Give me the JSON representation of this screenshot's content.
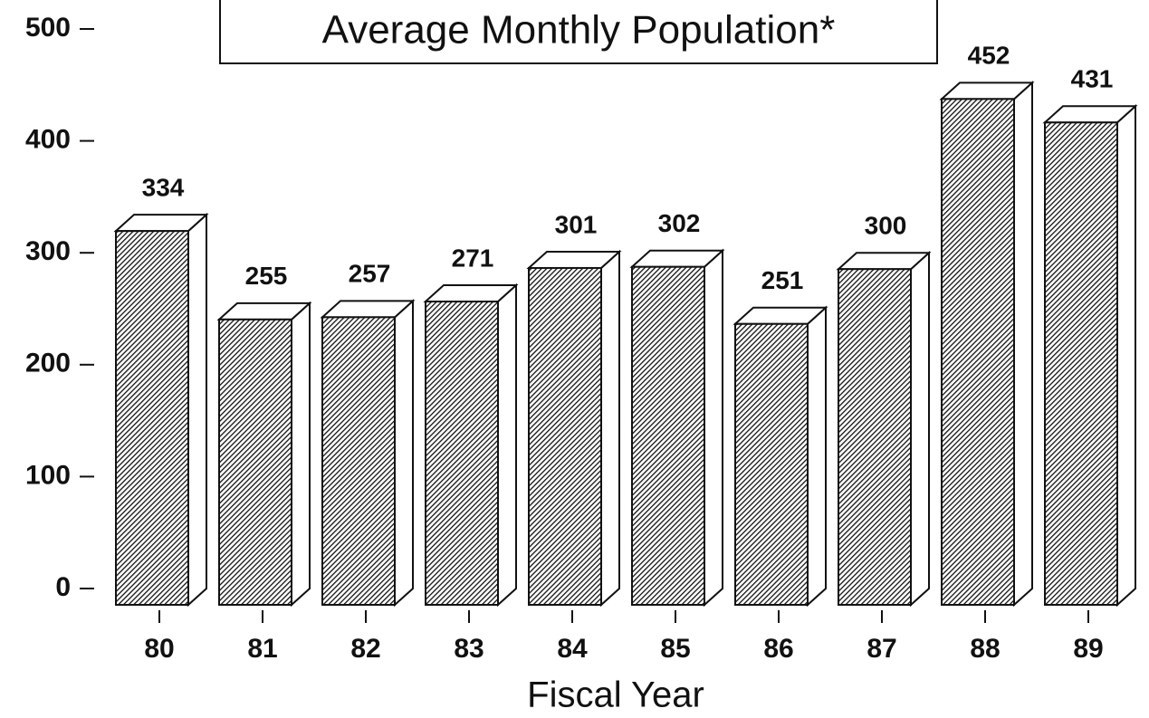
{
  "chart_data": {
    "type": "bar3d",
    "title": "Average Monthly Population*",
    "xlabel": "Fiscal Year",
    "categories": [
      "80",
      "81",
      "82",
      "83",
      "84",
      "85",
      "86",
      "87",
      "88",
      "89"
    ],
    "values": [
      334,
      255,
      257,
      271,
      301,
      302,
      251,
      300,
      452,
      431
    ],
    "ylim": [
      0,
      500
    ],
    "yticks": [
      0,
      100,
      200,
      300,
      400,
      500
    ],
    "color": "#111111"
  }
}
